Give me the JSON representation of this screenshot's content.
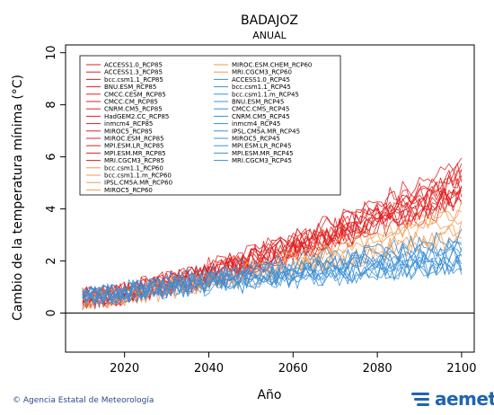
{
  "chart_data": {
    "type": "line",
    "title": "BADAJOZ",
    "subtitle": "ANUAL",
    "xlabel": "Año",
    "ylabel": "Cambio de la temperatura mínima (°C)",
    "xlim": [
      2006,
      2103
    ],
    "ylim": [
      -1.5,
      10.3
    ],
    "x_ticks": [
      2020,
      2040,
      2060,
      2080,
      2100
    ],
    "y_ticks": [
      0,
      2,
      4,
      6,
      8,
      10
    ],
    "x_start": 2010,
    "x_end": 2100,
    "zero_line": true,
    "legend_position": "top-left",
    "scenarios": [
      {
        "name": "RCP85",
        "color": "#e02020",
        "end_mean": 5.0,
        "spread": 0.9
      },
      {
        "name": "RCP60",
        "color": "#f39a4c",
        "end_mean": 3.4,
        "spread": 0.7
      },
      {
        "name": "RCP45",
        "color": "#3a8fd8",
        "end_mean": 2.3,
        "spread": 0.6
      }
    ],
    "series": [
      {
        "name": "ACCESS1.0_RCP85",
        "scenario": "RCP85"
      },
      {
        "name": "ACCESS1.3_RCP85",
        "scenario": "RCP85"
      },
      {
        "name": "bcc.csm1.1_RCP85",
        "scenario": "RCP85"
      },
      {
        "name": "BNU.ESM_RCP85",
        "scenario": "RCP85"
      },
      {
        "name": "CMCC.CESM_RCP85",
        "scenario": "RCP85"
      },
      {
        "name": "CMCC.CM_RCP85",
        "scenario": "RCP85"
      },
      {
        "name": "CNRM.CM5_RCP85",
        "scenario": "RCP85"
      },
      {
        "name": "HadGEM2.CC_RCP85",
        "scenario": "RCP85"
      },
      {
        "name": "inmcm4_RCP85",
        "scenario": "RCP85"
      },
      {
        "name": "MIROC5_RCP85",
        "scenario": "RCP85"
      },
      {
        "name": "MIROC.ESM_RCP85",
        "scenario": "RCP85"
      },
      {
        "name": "MPI.ESM.LR_RCP85",
        "scenario": "RCP85"
      },
      {
        "name": "MPI.ESM.MR_RCP85",
        "scenario": "RCP85"
      },
      {
        "name": "MRI.CGCM3_RCP85",
        "scenario": "RCP85"
      },
      {
        "name": "bcc.csm1.1_RCP60",
        "scenario": "RCP60"
      },
      {
        "name": "bcc.csm1.1.m_RCP60",
        "scenario": "RCP60"
      },
      {
        "name": "IPSL.CM5A.MR_RCP60",
        "scenario": "RCP60"
      },
      {
        "name": "MIROC5_RCP60",
        "scenario": "RCP60"
      },
      {
        "name": "MIROC.ESM.CHEM_RCP60",
        "scenario": "RCP60"
      },
      {
        "name": "MRI.CGCM3_RCP60",
        "scenario": "RCP60"
      },
      {
        "name": "ACCESS1.0_RCP45",
        "scenario": "RCP45"
      },
      {
        "name": "bcc.csm1.1_RCP45",
        "scenario": "RCP45"
      },
      {
        "name": "bcc.csm1.1.m_RCP45",
        "scenario": "RCP45"
      },
      {
        "name": "BNU.ESM_RCP45",
        "scenario": "RCP45"
      },
      {
        "name": "CMCC.CMS_RCP45",
        "scenario": "RCP45"
      },
      {
        "name": "CNRM.CM5_RCP45",
        "scenario": "RCP45"
      },
      {
        "name": "inmcm4_RCP45",
        "scenario": "RCP45"
      },
      {
        "name": "IPSL.CM5A.MR_RCP45",
        "scenario": "RCP45"
      },
      {
        "name": "MIROC5_RCP45",
        "scenario": "RCP45"
      },
      {
        "name": "MPI.ESM.LR_RCP45",
        "scenario": "RCP45"
      },
      {
        "name": "MPI.ESM.MR_RCP45",
        "scenario": "RCP45"
      },
      {
        "name": "MRI.CGCM3_RCP45",
        "scenario": "RCP45"
      }
    ]
  },
  "footer": {
    "credit": "© Agencia Estatal de Meteorología",
    "logo_text": "aemet",
    "logo_color": "#1e64b4"
  }
}
